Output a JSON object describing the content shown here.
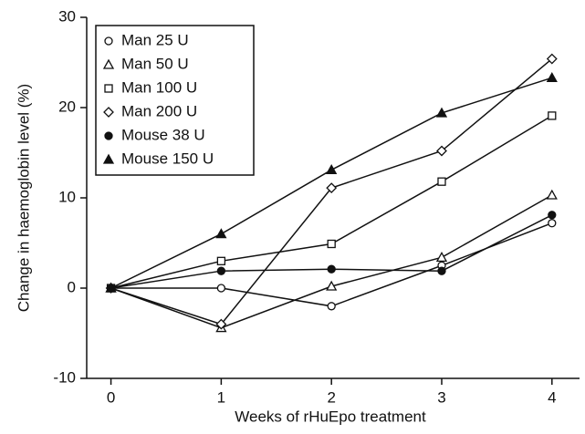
{
  "chart_data": {
    "type": "line",
    "x_label": "Weeks of rHuEpo treatment",
    "y_label": "Change in haemoglobin level (%)",
    "x": [
      0,
      1,
      2,
      3,
      4
    ],
    "series": [
      {
        "name": "Man 25 U",
        "color": "#111111",
        "marker": "circle",
        "filled": false,
        "values": [
          0,
          0,
          -2,
          2.5,
          7.2
        ]
      },
      {
        "name": "Man 50 U",
        "color": "#111111",
        "marker": "triangle",
        "filled": false,
        "values": [
          0,
          -4.4,
          0.2,
          3.4,
          10.3
        ]
      },
      {
        "name": "Man 100 U",
        "color": "#111111",
        "marker": "square",
        "filled": false,
        "values": [
          0,
          3,
          4.9,
          11.8,
          19.1
        ]
      },
      {
        "name": "Man 200 U",
        "color": "#111111",
        "marker": "diamond",
        "filled": false,
        "values": [
          0,
          -4,
          11.1,
          15.2,
          25.4
        ]
      },
      {
        "name": "Mouse 38 U",
        "color": "#111111",
        "marker": "circle",
        "filled": true,
        "values": [
          0,
          1.9,
          2.1,
          1.9,
          8.1
        ]
      },
      {
        "name": "Mouse 150 U",
        "color": "#111111",
        "marker": "triangle",
        "filled": true,
        "values": [
          0,
          6,
          13.1,
          19.4,
          23.3
        ]
      }
    ],
    "xlim": [
      -0.22,
      4.25
    ],
    "xticks": [
      0,
      1,
      2,
      3,
      4
    ],
    "ylim": [
      -10,
      30
    ],
    "yticks": [
      -10,
      0,
      10,
      20,
      30
    ],
    "legend": "upper left",
    "grid": false
  }
}
